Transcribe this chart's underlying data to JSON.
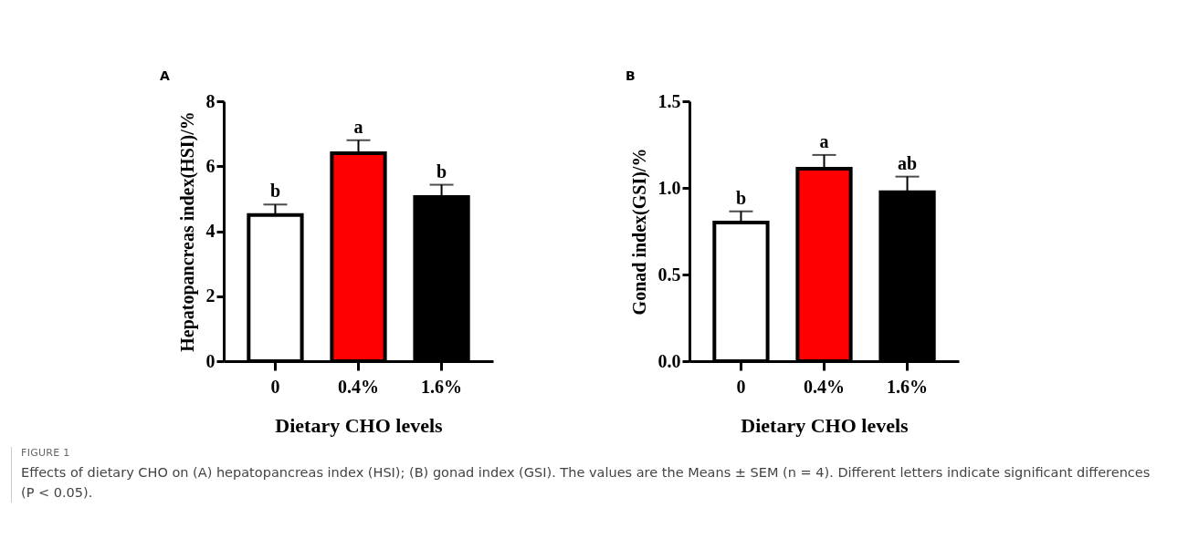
{
  "chart_data": [
    {
      "type": "bar",
      "title": "A",
      "xlabel": "Dietary CHO levels",
      "ylabel": "Hepatopancreas index(HSI)/%",
      "categories": [
        "0",
        "0.4%",
        "1.6%"
      ],
      "values": [
        4.5,
        6.4,
        5.05
      ],
      "colors": [
        "#ffffff",
        "#ff0000",
        "#000000"
      ],
      "errors": [
        0.32,
        0.4,
        0.38
      ],
      "ylim": [
        0,
        8
      ],
      "yticks": [
        0,
        2,
        4,
        6,
        8
      ],
      "annotations": [
        {
          "text": "b",
          "x": "0",
          "y": 4.82
        },
        {
          "text": "a",
          "x": "0.4%",
          "y": 6.8
        },
        {
          "text": "b",
          "x": "1.6%",
          "y": 5.43
        },
        "FIGURE 1",
        "Effects of dietary CHO on (A) hepatopancreas index (HSI); (B) gonad index (GSI). The values are the Means ± SEM (n = 4). Different letters indicate significant differences (P < 0.05)."
      ]
    },
    {
      "type": "bar",
      "title": "B",
      "xlabel": "Dietary CHO levels",
      "ylabel": "Gonad index(GSI)/%",
      "categories": [
        "0",
        "0.4%",
        "1.6%"
      ],
      "values": [
        0.8,
        1.11,
        0.975
      ],
      "colors": [
        "#ffffff",
        "#ff0000",
        "#000000"
      ],
      "errors": [
        0.065,
        0.08,
        0.09
      ],
      "ylim": [
        0,
        1.5
      ],
      "yticks": [
        {
          "value": 0,
          "label": "0.0"
        },
        0.5,
        {
          "value": 1,
          "label": "1.0"
        },
        1.5
      ],
      "annotations": [
        {
          "text": "b",
          "x": "0",
          "y": 0.865
        },
        {
          "text": "a",
          "x": "0.4%",
          "y": 1.19
        },
        {
          "text": "ab",
          "x": "1.6%",
          "y": 1.065
        }
      ]
    }
  ]
}
